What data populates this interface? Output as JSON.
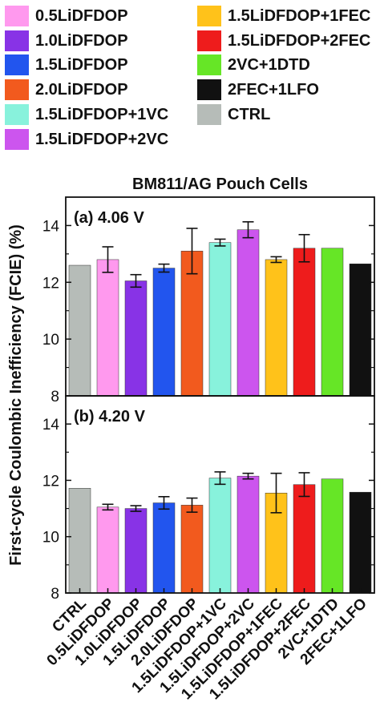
{
  "legend": [
    {
      "label": "0.5LiDFDOP",
      "color": "#ff99ee"
    },
    {
      "label": "1.0LiDFDOP",
      "color": "#8833e6"
    },
    {
      "label": "1.5LiDFDOP",
      "color": "#2255ee"
    },
    {
      "label": "2.0LiDFDOP",
      "color": "#f25a1e"
    },
    {
      "label": "1.5LiDFDOP+1VC",
      "color": "#88f2dc"
    },
    {
      "label": "1.5LiDFDOP+2VC",
      "color": "#cc55ee"
    },
    {
      "label": "1.5LiDFDOP+1FEC",
      "color": "#ffc21a"
    },
    {
      "label": "1.5LiDFDOP+2FEC",
      "color": "#ee1c1c"
    },
    {
      "label": "2VC+1DTD",
      "color": "#66e626"
    },
    {
      "label": "2FEC+1LFO",
      "color": "#111111"
    },
    {
      "label": "CTRL",
      "color": "#b6bcb8"
    }
  ],
  "chart_data": {
    "type": "bar",
    "title": "BM811/AG Pouch Cells",
    "ylabel": "First-cycle Coulombic Inefficiency (FCIE) (%)",
    "xlabel": "",
    "categories": [
      "CTRL",
      "0.5LiDFDOP",
      "1.0LiDFDOP",
      "1.5LiDFDOP",
      "2.0LiDFDOP",
      "1.5LiDFDOP+1VC",
      "1.5LiDFDOP+2VC",
      "1.5LiDFDOP+1FEC",
      "1.5LiDFDOP+2FEC",
      "2VC+1DTD",
      "2FEC+1LFO"
    ],
    "colors": [
      "#b6bcb8",
      "#ff99ee",
      "#8833e6",
      "#2255ee",
      "#f25a1e",
      "#88f2dc",
      "#cc55ee",
      "#ffc21a",
      "#ee1c1c",
      "#66e626",
      "#111111"
    ],
    "ylim": [
      8,
      15
    ],
    "yticks": [
      8,
      10,
      12,
      14
    ],
    "grid": false,
    "panels": [
      {
        "label": "(a) 4.06 V",
        "values": [
          12.6,
          12.8,
          12.05,
          12.5,
          13.1,
          13.4,
          13.85,
          12.8,
          13.2,
          13.2,
          12.65
        ],
        "errors": [
          0.0,
          0.45,
          0.22,
          0.14,
          0.8,
          0.12,
          0.28,
          0.1,
          0.48,
          0.02,
          0.0
        ]
      },
      {
        "label": "(b) 4.20 V",
        "values": [
          11.72,
          11.05,
          11.0,
          11.2,
          11.12,
          12.08,
          12.15,
          11.55,
          11.85,
          12.05,
          11.58
        ],
        "errors": [
          0.0,
          0.1,
          0.1,
          0.22,
          0.25,
          0.22,
          0.1,
          0.7,
          0.42,
          0.0,
          0.0
        ]
      }
    ]
  }
}
